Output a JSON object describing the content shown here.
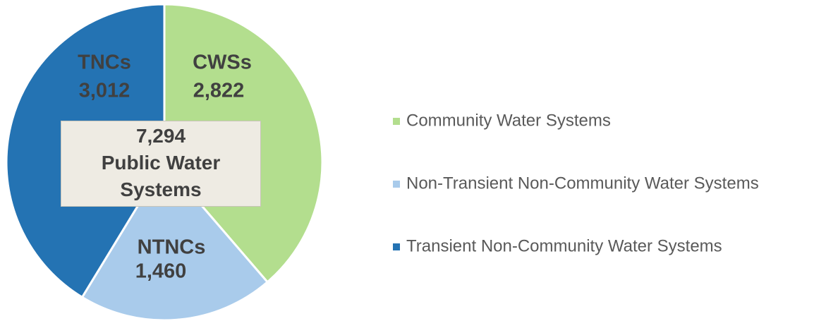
{
  "chart_data": {
    "type": "pie",
    "categories": [
      "CWSs",
      "NTNCs",
      "TNCs"
    ],
    "values": [
      2822,
      1460,
      3012
    ],
    "value_labels": [
      "2,822",
      "1,460",
      "3,012"
    ],
    "colors": [
      "#b3de8e",
      "#a9cbeb",
      "#2473b3"
    ],
    "legend": [
      "Community Water Systems",
      "Non-Transient Non-Community Water Systems",
      "Transient Non-Community Water Systems"
    ],
    "center_annotation": [
      "7,294",
      "Public Water Systems"
    ]
  }
}
